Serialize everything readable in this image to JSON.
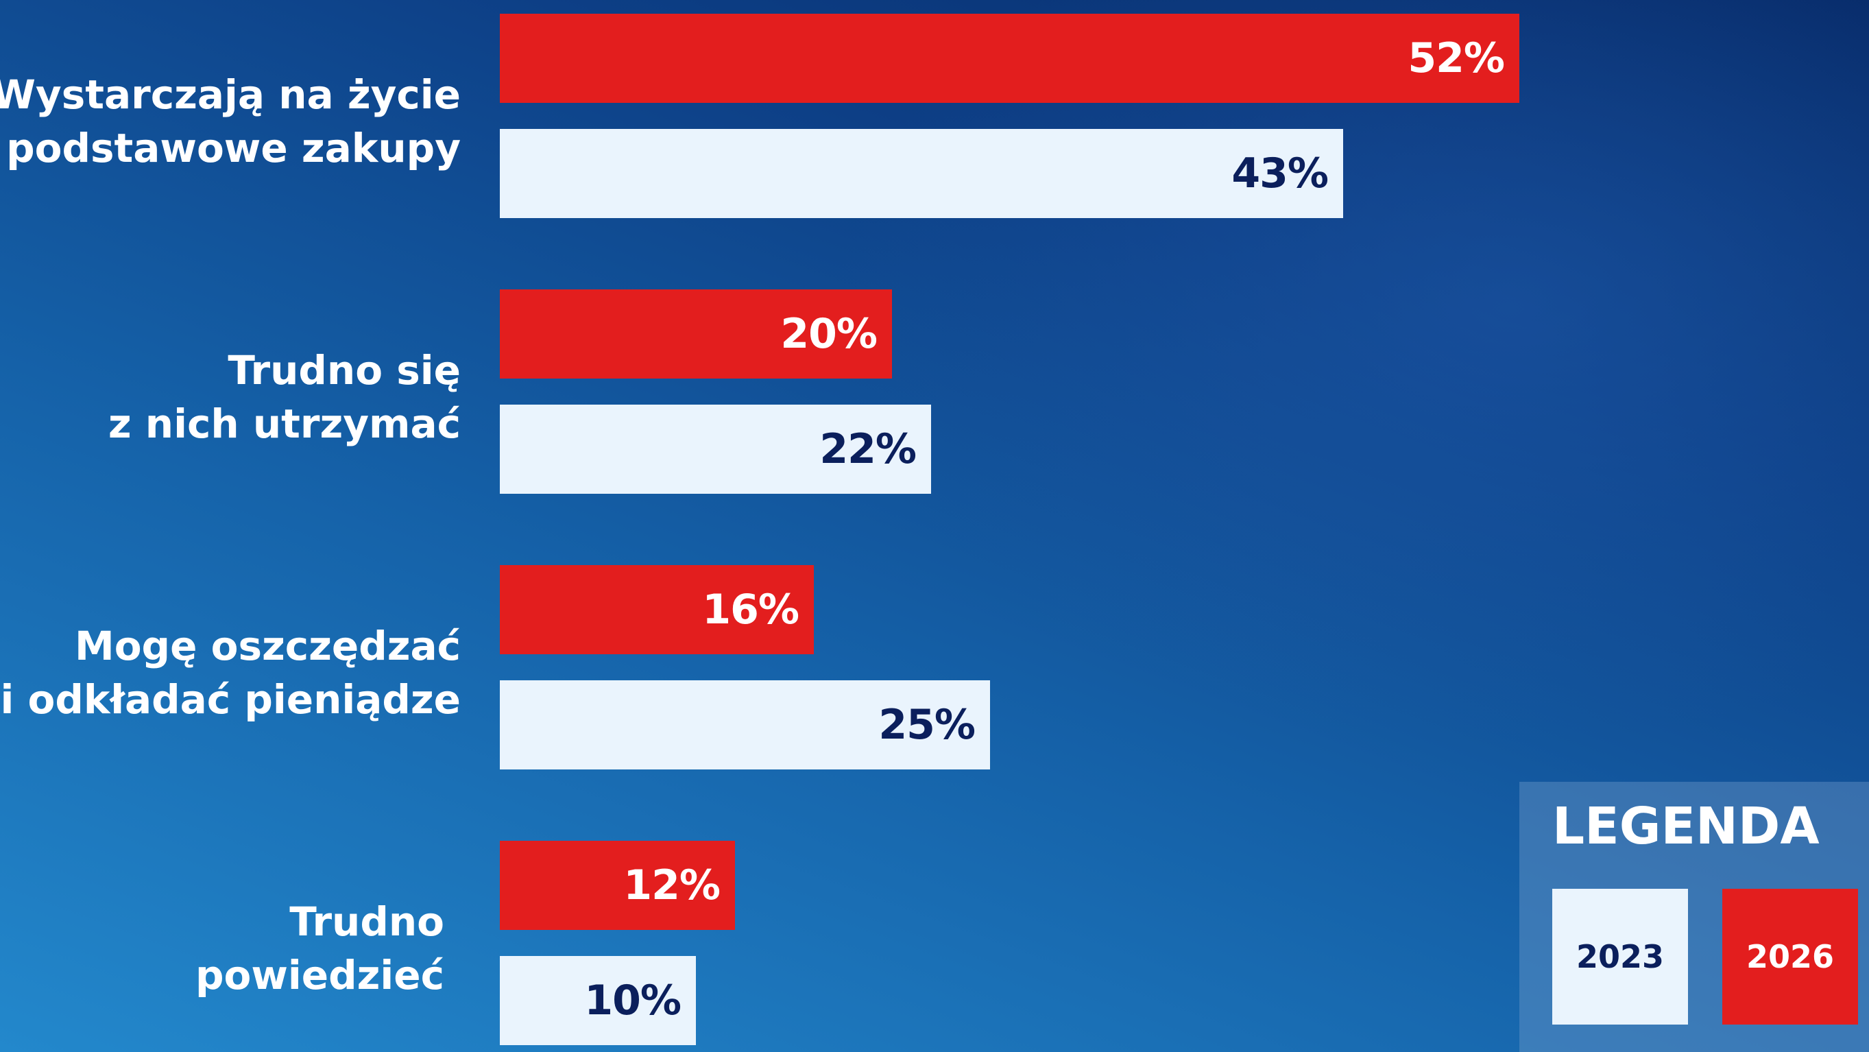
{
  "chart_data": {
    "type": "bar",
    "orientation": "horizontal",
    "categories": [
      [
        "Wystarczają na życie",
        "i podstawowe zakupy"
      ],
      [
        "Trudno się",
        "z nich utrzymać"
      ],
      [
        "Mogę oszczędzać",
        "i odkładać pieniądze"
      ],
      [
        "Trudno",
        "powiedzieć"
      ]
    ],
    "series": [
      {
        "name": "2026",
        "color": "#e31e1e",
        "text_color": "#ffffff",
        "values": [
          52,
          20,
          16,
          12
        ]
      },
      {
        "name": "2023",
        "color": "#eaf4fd",
        "text_color": "#0b1f5c",
        "values": [
          43,
          22,
          25,
          10
        ]
      }
    ],
    "value_suffix": "%",
    "xlim": [
      0,
      100
    ],
    "grid": false,
    "legend": {
      "title": "LEGENDA",
      "position": "bottom-right",
      "order": [
        "2023",
        "2026"
      ]
    }
  }
}
